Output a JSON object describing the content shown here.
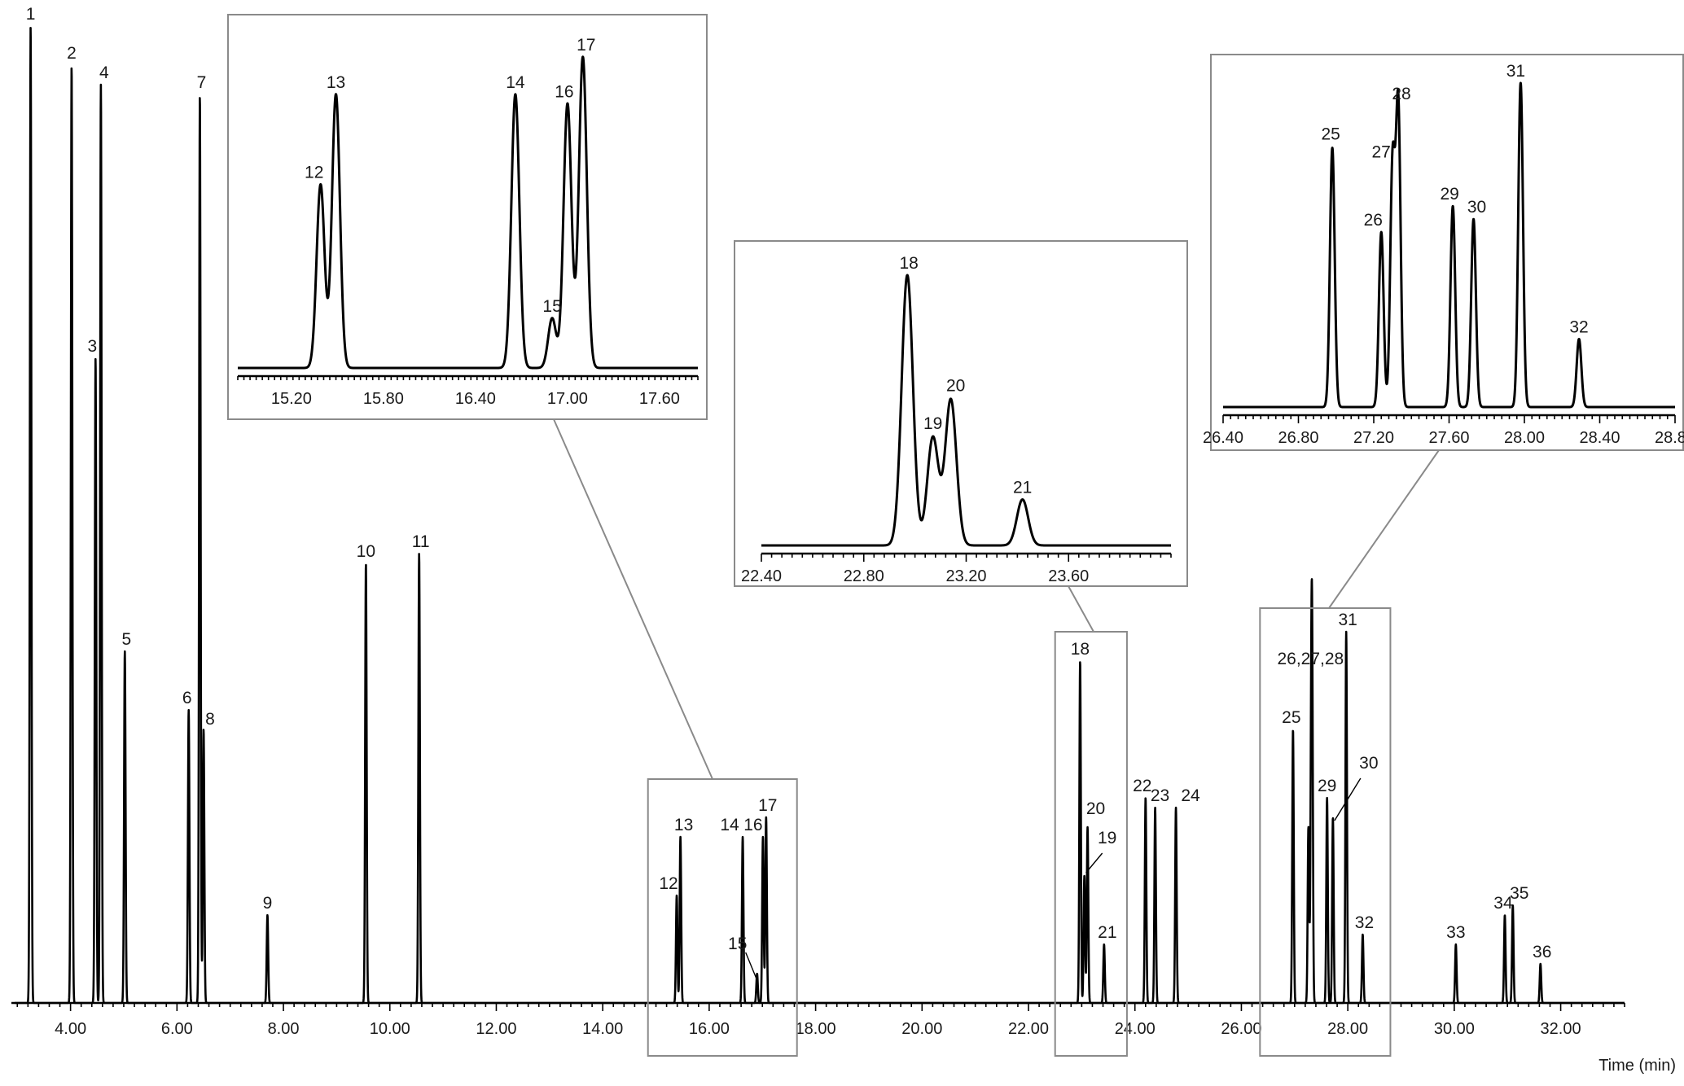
{
  "chart_data": {
    "type": "line",
    "title": "",
    "xlabel": "Time (min)",
    "ylabel": "",
    "xlim": [
      2.95,
      33.2
    ],
    "ylim": [
      0,
      100
    ],
    "x_ticks": [
      4.0,
      6.0,
      8.0,
      10.0,
      12.0,
      14.0,
      16.0,
      18.0,
      20.0,
      22.0,
      24.0,
      26.0,
      28.0,
      30.0,
      32.0
    ],
    "x_tick_labels": [
      "4.00",
      "6.00",
      "8.00",
      "10.00",
      "12.00",
      "14.00",
      "16.00",
      "18.00",
      "20.00",
      "22.00",
      "24.00",
      "26.00",
      "28.00",
      "30.00",
      "32.00"
    ],
    "peaks": [
      {
        "label": "1",
        "rt": 3.25,
        "height": 100
      },
      {
        "label": "2",
        "rt": 4.02,
        "height": 96
      },
      {
        "label": "3",
        "rt": 4.47,
        "height": 66
      },
      {
        "label": "4",
        "rt": 4.57,
        "height": 94
      },
      {
        "label": "5",
        "rt": 5.02,
        "height": 36
      },
      {
        "label": "6",
        "rt": 6.22,
        "height": 30
      },
      {
        "label": "7",
        "rt": 6.43,
        "height": 93
      },
      {
        "label": "8",
        "rt": 6.5,
        "height": 28
      },
      {
        "label": "9",
        "rt": 7.7,
        "height": 9
      },
      {
        "label": "10",
        "rt": 9.55,
        "height": 45
      },
      {
        "label": "11",
        "rt": 10.55,
        "height": 46
      },
      {
        "label": "12",
        "rt": 15.39,
        "height": 11
      },
      {
        "label": "13",
        "rt": 15.46,
        "height": 17
      },
      {
        "label": "14",
        "rt": 16.63,
        "height": 17
      },
      {
        "label": "15",
        "rt": 16.9,
        "height": 3
      },
      {
        "label": "16",
        "rt": 17.01,
        "height": 17
      },
      {
        "label": "17",
        "rt": 17.07,
        "height": 19
      },
      {
        "label": "18",
        "rt": 22.97,
        "height": 35
      },
      {
        "label": "19",
        "rt": 23.05,
        "height": 13
      },
      {
        "label": "20",
        "rt": 23.11,
        "height": 18
      },
      {
        "label": "21",
        "rt": 23.42,
        "height": 6
      },
      {
        "label": "22",
        "rt": 24.2,
        "height": 21
      },
      {
        "label": "23",
        "rt": 24.38,
        "height": 20
      },
      {
        "label": "24",
        "rt": 24.77,
        "height": 20
      },
      {
        "label": "25",
        "rt": 26.97,
        "height": 28
      },
      {
        "label": "26",
        "rt": 27.26,
        "height": 18
      },
      {
        "label": "27",
        "rt": 27.31,
        "height": 22
      },
      {
        "label": "28",
        "rt": 27.33,
        "height": 33
      },
      {
        "label": "29",
        "rt": 27.61,
        "height": 21
      },
      {
        "label": "30",
        "rt": 27.72,
        "height": 19
      },
      {
        "label": "31",
        "rt": 27.97,
        "height": 38
      },
      {
        "label": "32",
        "rt": 28.28,
        "height": 7
      },
      {
        "label": "33",
        "rt": 30.03,
        "height": 6
      },
      {
        "label": "34",
        "rt": 30.95,
        "height": 9
      },
      {
        "label": "35",
        "rt": 31.1,
        "height": 10
      },
      {
        "label": "36",
        "rt": 31.62,
        "height": 4
      }
    ],
    "annotations": [
      {
        "text": "26,27,28"
      }
    ],
    "insets": [
      {
        "name": "inset-15-17",
        "xlim": [
          14.85,
          17.85
        ],
        "x_ticks": [
          15.2,
          15.8,
          16.4,
          17.0,
          17.6
        ],
        "x_tick_labels": [
          "15.20",
          "15.80",
          "16.40",
          "17.00",
          "17.60"
        ],
        "peaks": [
          {
            "label": "12",
            "rt": 15.39,
            "height": 59
          },
          {
            "label": "13",
            "rt": 15.49,
            "height": 88
          },
          {
            "label": "14",
            "rt": 16.66,
            "height": 88
          },
          {
            "label": "15",
            "rt": 16.9,
            "height": 16
          },
          {
            "label": "16",
            "rt": 17.0,
            "height": 85
          },
          {
            "label": "17",
            "rt": 17.1,
            "height": 100
          }
        ]
      },
      {
        "name": "inset-22-24",
        "xlim": [
          22.4,
          24.0
        ],
        "x_ticks": [
          22.4,
          22.8,
          23.2,
          23.6
        ],
        "x_tick_labels": [
          "22.40",
          "22.80",
          "23.20",
          "23.60"
        ],
        "peaks": [
          {
            "label": "18",
            "rt": 22.97,
            "height": 100
          },
          {
            "label": "19",
            "rt": 23.07,
            "height": 40
          },
          {
            "label": "20",
            "rt": 23.14,
            "height": 54
          },
          {
            "label": "21",
            "rt": 23.42,
            "height": 17
          }
        ]
      },
      {
        "name": "inset-26-29",
        "xlim": [
          26.4,
          28.8
        ],
        "x_ticks": [
          26.4,
          26.8,
          27.2,
          27.6,
          28.0,
          28.4,
          28.8
        ],
        "x_tick_labels": [
          "26.40",
          "26.80",
          "27.20",
          "27.60",
          "28.00",
          "28.40",
          "28.80"
        ],
        "peaks": [
          {
            "label": "25",
            "rt": 26.98,
            "height": 80
          },
          {
            "label": "26",
            "rt": 27.24,
            "height": 54
          },
          {
            "label": "27",
            "rt": 27.3,
            "height": 75
          },
          {
            "label": "28",
            "rt": 27.33,
            "height": 93
          },
          {
            "label": "29",
            "rt": 27.62,
            "height": 62
          },
          {
            "label": "30",
            "rt": 27.73,
            "height": 58
          },
          {
            "label": "31",
            "rt": 27.98,
            "height": 100
          },
          {
            "label": "32",
            "rt": 28.29,
            "height": 21
          }
        ]
      }
    ]
  }
}
